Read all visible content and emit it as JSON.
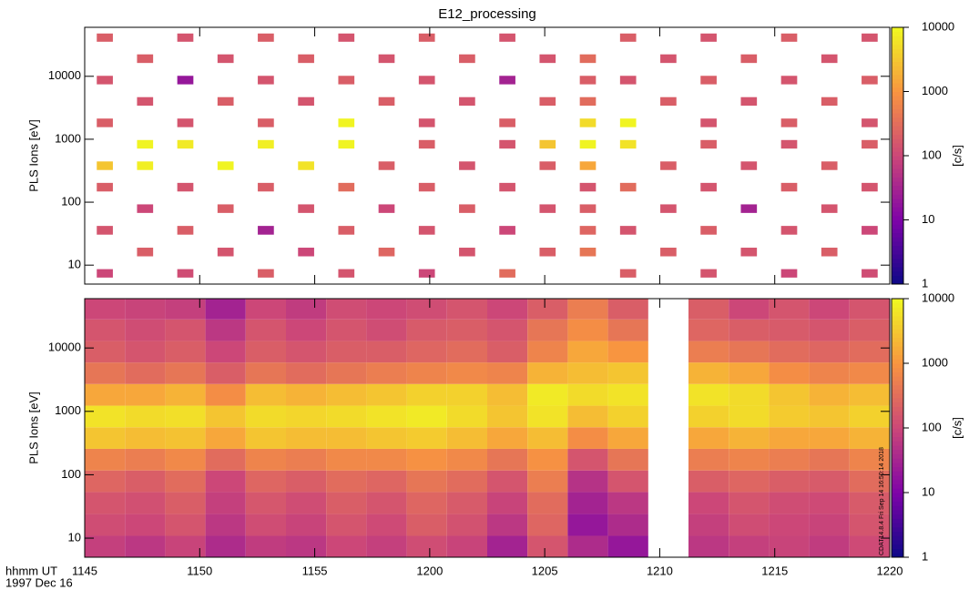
{
  "chart_data": [
    {
      "type": "heatmap",
      "title": "E12_processing",
      "y_label": "PLS Ions [eV]",
      "x": [
        705.875,
        707.625,
        709.375,
        711.125,
        712.875,
        714.625,
        716.375,
        718.125,
        719.875,
        721.625,
        723.375,
        725.125,
        726.875,
        728.625,
        730.375,
        732.125,
        733.875,
        735.625,
        737.375,
        739.125
      ],
      "y": [
        7.4,
        16,
        36,
        79,
        173,
        380,
        830,
        1820,
        4000,
        8700,
        19000,
        42000
      ],
      "z": [
        [
          100,
          null,
          120,
          null,
          200,
          null,
          150,
          null,
          100,
          null,
          300,
          null,
          null,
          200,
          null,
          150,
          null,
          100,
          null,
          120
        ],
        [
          null,
          200,
          null,
          150,
          null,
          100,
          null,
          250,
          null,
          150,
          null,
          200,
          400,
          null,
          200,
          null,
          150,
          null,
          200,
          null
        ],
        [
          150,
          null,
          200,
          null,
          30,
          null,
          200,
          null,
          150,
          null,
          100,
          null,
          250,
          150,
          null,
          200,
          null,
          150,
          null,
          100
        ],
        [
          null,
          100,
          null,
          200,
          null,
          150,
          null,
          100,
          null,
          200,
          null,
          150,
          200,
          null,
          150,
          null,
          30,
          null,
          150,
          null
        ],
        [
          200,
          null,
          150,
          null,
          200,
          null,
          300,
          null,
          200,
          null,
          150,
          null,
          150,
          300,
          null,
          150,
          null,
          200,
          null,
          150
        ],
        [
          3000,
          8000,
          null,
          9000,
          null,
          6000,
          null,
          200,
          null,
          150,
          null,
          200,
          1500,
          null,
          200,
          null,
          150,
          null,
          200,
          null
        ],
        [
          null,
          9000,
          7000,
          null,
          8000,
          null,
          9000,
          null,
          200,
          null,
          150,
          3000,
          9000,
          6000,
          null,
          200,
          null,
          150,
          null,
          200
        ],
        [
          200,
          null,
          150,
          null,
          200,
          null,
          9000,
          null,
          150,
          null,
          200,
          null,
          5000,
          9000,
          null,
          150,
          null,
          200,
          null,
          150
        ],
        [
          null,
          150,
          null,
          200,
          null,
          150,
          null,
          200,
          null,
          150,
          null,
          200,
          300,
          null,
          200,
          null,
          150,
          null,
          200,
          null
        ],
        [
          150,
          null,
          20,
          null,
          150,
          null,
          200,
          null,
          150,
          null,
          30,
          null,
          200,
          150,
          null,
          200,
          null,
          150,
          null,
          200
        ],
        [
          null,
          200,
          null,
          150,
          null,
          200,
          null,
          150,
          null,
          200,
          null,
          150,
          300,
          null,
          150,
          null,
          200,
          null,
          150,
          null
        ],
        [
          200,
          null,
          150,
          null,
          200,
          null,
          150,
          null,
          200,
          null,
          150,
          null,
          null,
          200,
          null,
          150,
          null,
          200,
          null,
          150
        ]
      ],
      "xlim": [
        705,
        740
      ],
      "ylim": [
        5,
        60000
      ],
      "yticks": [
        10,
        100,
        1000,
        10000
      ],
      "ylog": true,
      "zlim": [
        1,
        10000
      ],
      "zticks": [
        1,
        10,
        100,
        1000,
        10000
      ],
      "zlabel": "[c/s]",
      "zlog": true,
      "colormap": [
        "#0d0887",
        "#7e03a8",
        "#cc4778",
        "#f89540",
        "#f0f921"
      ]
    },
    {
      "type": "heatmap",
      "y_label": "PLS Ions [eV]",
      "x_label": "hhmm UT",
      "date": "1997 Dec 16",
      "footnote": "CDAT14.8.4 Fri Sep 14 16:50:14 2018",
      "x": [
        705.875,
        707.625,
        709.375,
        711.125,
        712.875,
        714.625,
        716.375,
        718.125,
        719.875,
        721.625,
        723.375,
        725.125,
        726.875,
        728.625,
        730.375,
        732.125,
        733.875,
        735.625,
        737.375,
        739.125
      ],
      "y": [
        7.4,
        16,
        36,
        79,
        173,
        380,
        830,
        1820,
        4000,
        8700,
        19000,
        42000
      ],
      "z": [
        [
          80,
          60,
          90,
          40,
          70,
          60,
          100,
          80,
          120,
          90,
          30,
          150,
          40,
          20,
          null,
          60,
          80,
          90,
          70,
          110
        ],
        [
          120,
          100,
          150,
          60,
          120,
          90,
          150,
          110,
          200,
          140,
          60,
          250,
          20,
          40,
          null,
          80,
          120,
          100,
          90,
          150
        ],
        [
          150,
          130,
          200,
          80,
          160,
          120,
          200,
          150,
          250,
          180,
          90,
          300,
          30,
          60,
          null,
          100,
          150,
          120,
          110,
          180
        ],
        [
          250,
          200,
          300,
          100,
          250,
          200,
          300,
          250,
          400,
          300,
          150,
          500,
          50,
          150,
          null,
          200,
          250,
          200,
          180,
          300
        ],
        [
          600,
          500,
          700,
          300,
          600,
          500,
          700,
          700,
          900,
          700,
          400,
          900,
          150,
          400,
          null,
          500,
          600,
          500,
          400,
          600
        ],
        [
          3000,
          2500,
          2800,
          1500,
          3000,
          2500,
          2500,
          3000,
          3500,
          2500,
          1500,
          2500,
          800,
          1500,
          null,
          1500,
          2000,
          1500,
          1500,
          2000
        ],
        [
          6000,
          5000,
          5500,
          3000,
          5000,
          4500,
          5000,
          6000,
          7000,
          5000,
          3000,
          6000,
          2500,
          4000,
          null,
          4000,
          5000,
          3500,
          3000,
          4000
        ],
        [
          1500,
          1500,
          2000,
          800,
          2500,
          2000,
          2500,
          3000,
          4000,
          4000,
          2500,
          7000,
          5000,
          6000,
          null,
          6000,
          5000,
          3000,
          2000,
          2500
        ],
        [
          400,
          300,
          400,
          200,
          400,
          300,
          400,
          500,
          600,
          700,
          600,
          2000,
          2500,
          3000,
          null,
          2000,
          1500,
          800,
          600,
          700
        ],
        [
          200,
          150,
          200,
          100,
          200,
          150,
          200,
          200,
          250,
          300,
          200,
          600,
          1500,
          1000,
          null,
          500,
          400,
          300,
          250,
          300
        ],
        [
          150,
          120,
          150,
          60,
          150,
          100,
          150,
          120,
          180,
          200,
          150,
          400,
          800,
          400,
          null,
          250,
          200,
          180,
          150,
          200
        ],
        [
          100,
          90,
          80,
          30,
          100,
          70,
          120,
          100,
          120,
          150,
          100,
          200,
          500,
          200,
          null,
          200,
          100,
          150,
          100,
          150
        ]
      ],
      "xlim": [
        705,
        740
      ],
      "xticks": [
        {
          "value": 705,
          "label": "1145"
        },
        {
          "value": 710,
          "label": "1150"
        },
        {
          "value": 715,
          "label": "1155"
        },
        {
          "value": 720,
          "label": "1200"
        },
        {
          "value": 725,
          "label": "1205"
        },
        {
          "value": 730,
          "label": "1210"
        },
        {
          "value": 735,
          "label": "1215"
        },
        {
          "value": 740,
          "label": "1220"
        }
      ],
      "ylim": [
        5,
        60000
      ],
      "yticks": [
        10,
        100,
        1000,
        10000
      ],
      "ylog": true,
      "zlim": [
        1,
        10000
      ],
      "zticks": [
        1,
        10,
        100,
        1000,
        10000
      ],
      "zlabel": "[c/s]",
      "zlog": true,
      "colormap": [
        "#0d0887",
        "#7e03a8",
        "#cc4778",
        "#f89540",
        "#f0f921"
      ]
    }
  ]
}
